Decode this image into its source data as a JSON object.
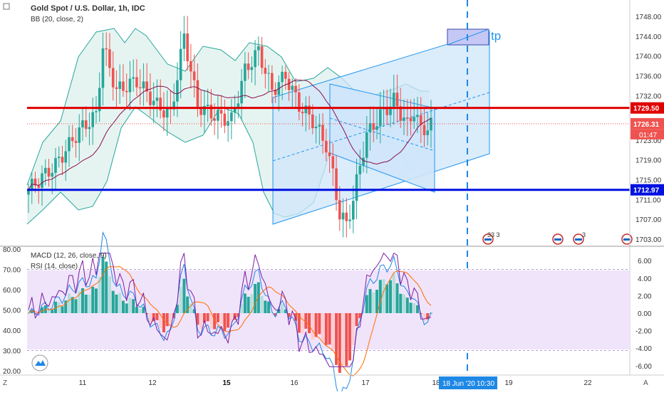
{
  "header": {
    "title": "Gold Spot / U.S. Dollar, 1h, IDC",
    "bb_label": "BB (20, close, 2)",
    "macd_label": "MACD (12, 26, close, 9)",
    "rsi_label": "RSI (14, close)"
  },
  "annotations": {
    "tp_label": "tp",
    "red_line_value": "1729.50",
    "blue_line_value": "1712.97",
    "last_price": "1726.31",
    "countdown": "01:47",
    "cursor_date": "18 Jun '20",
    "cursor_time": "10:30",
    "event_badge_1": "33 3",
    "event_badge_2": "3",
    "corner_left": "Z",
    "corner_right": "A"
  },
  "colors": {
    "up": "#26a69a",
    "down": "#ef5350",
    "red_line": "#e00000",
    "blue_line": "#0010e0",
    "bb_fill": "#e6f4f1",
    "channel_fill": "#cfe6fa",
    "rsi_fill": "#f0e4fa",
    "accent": "#2196f3"
  },
  "chart_data": [
    {
      "type": "line",
      "name": "price",
      "y_axis_ticks": [
        "1748.00",
        "1744.00",
        "1740.00",
        "1736.00",
        "1732.00",
        "1723.00",
        "1719.00",
        "1715.00",
        "1711.00",
        "1707.00",
        "1703.00"
      ],
      "x_axis_ticks": [
        "11",
        "12",
        "15",
        "16",
        "17",
        "18",
        "19",
        "22"
      ],
      "ylim": [
        1701,
        1750
      ],
      "lines": [
        {
          "name": "resistance",
          "value": 1729.5
        },
        {
          "name": "support",
          "value": 1712.97
        }
      ]
    },
    {
      "type": "line",
      "name": "indicators",
      "rsi_ticks": [
        "80.00",
        "70.00",
        "60.00",
        "50.00",
        "40.00",
        "30.00",
        "20.00"
      ],
      "macd_ticks": [
        "6.00",
        "4.00",
        "2.00",
        "0.00",
        "-2.00",
        "-4.00",
        "-6.00"
      ]
    }
  ]
}
